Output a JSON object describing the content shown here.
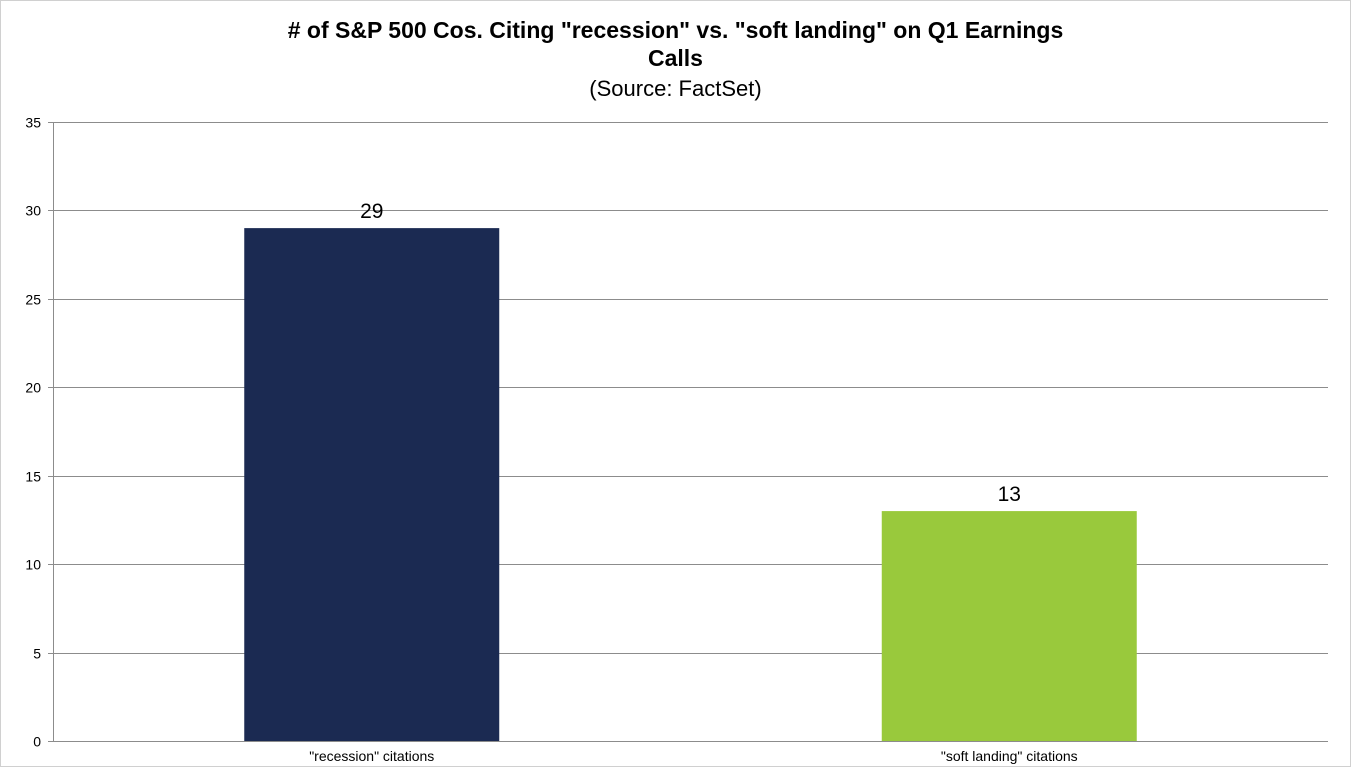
{
  "chart_data": {
    "type": "bar",
    "title_line1": "# of S&P 500 Cos. Citing \"recession\" vs. \"soft landing\" on Q1 Earnings",
    "title_line2": "Calls",
    "subtitle": "(Source: FactSet)",
    "categories": [
      "\"recession\" citations",
      "\"soft landing\" citations"
    ],
    "values": [
      29,
      13
    ],
    "data_labels": [
      "29",
      "13"
    ],
    "bar_colors": [
      "#1b2a52",
      "#99c93c"
    ],
    "ylim": [
      0,
      35
    ],
    "yticks": [
      0,
      5,
      10,
      15,
      20,
      25,
      30,
      35
    ],
    "grid": true,
    "legend": "none",
    "xlabel": "",
    "ylabel": ""
  }
}
